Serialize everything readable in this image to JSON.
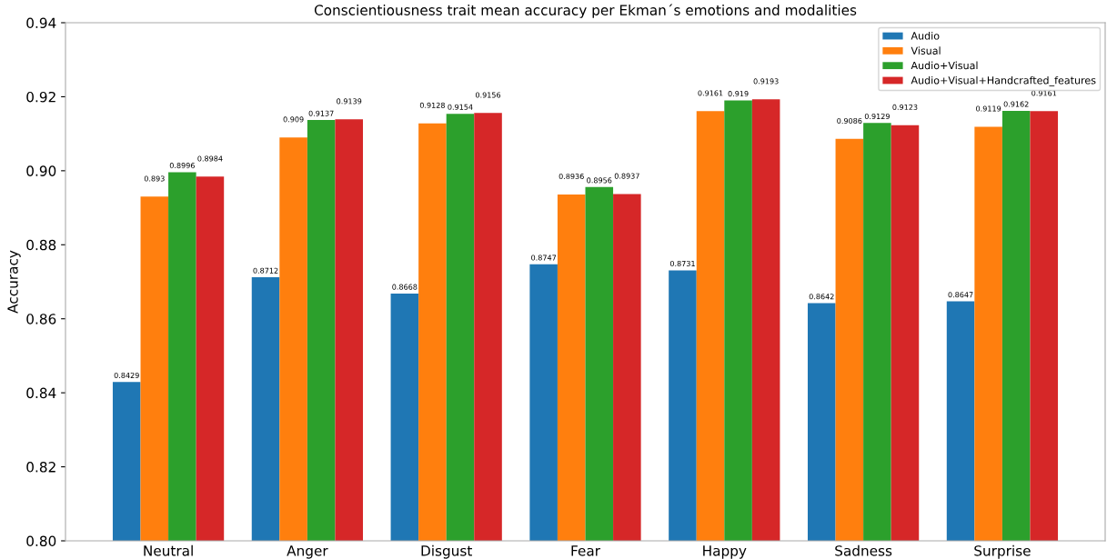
{
  "chart_data": {
    "type": "bar",
    "title": "Conscientiousness trait mean accuracy per Ekman´s emotions and modalities",
    "ylabel": "Accuracy",
    "categories": [
      "Neutral",
      "Anger",
      "Disgust",
      "Fear",
      "Happy",
      "Sadness",
      "Surprise"
    ],
    "series": [
      {
        "name": "Audio",
        "color": "#1f77b4",
        "values": [
          0.8429,
          0.8712,
          0.8668,
          0.8747,
          0.8731,
          0.8642,
          0.8647
        ]
      },
      {
        "name": "Visual",
        "color": "#ff7f0e",
        "values": [
          0.893,
          0.909,
          0.9128,
          0.8936,
          0.9161,
          0.9086,
          0.9119
        ]
      },
      {
        "name": "Audio+Visual",
        "color": "#2ca02c",
        "values": [
          0.8996,
          0.9137,
          0.9154,
          0.8956,
          0.919,
          0.9129,
          0.9162
        ]
      },
      {
        "name": "Audio+Visual+Handcrafted_features",
        "color": "#d62728",
        "values": [
          0.8984,
          0.9139,
          0.9156,
          0.8937,
          0.9193,
          0.9123,
          0.9161
        ]
      }
    ],
    "ylim": [
      0.8,
      0.94
    ],
    "yticks": [
      {
        "value": 0.8,
        "label": "0.80"
      },
      {
        "value": 0.82,
        "label": "0.82"
      },
      {
        "value": 0.84,
        "label": "0.84"
      },
      {
        "value": 0.86,
        "label": "0.86"
      },
      {
        "value": 0.88,
        "label": "0.88"
      },
      {
        "value": 0.9,
        "label": "0.90"
      },
      {
        "value": 0.92,
        "label": "0.92"
      },
      {
        "value": 0.94,
        "label": "0.94"
      }
    ],
    "data_labels": true,
    "legend": "top right",
    "grid": false
  }
}
